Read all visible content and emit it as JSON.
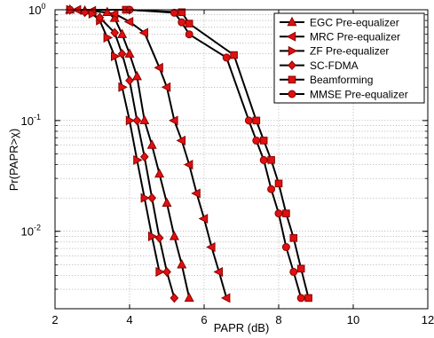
{
  "chart_data": {
    "type": "line",
    "xlabel": "PAPR (dB)",
    "ylabel": "Pr(PAPR>χ)",
    "xlim": [
      2,
      12
    ],
    "ylim": [
      0.002,
      1
    ],
    "yscale": "log",
    "x_ticks": [
      "2",
      "4",
      "6",
      "8",
      "10",
      "12"
    ],
    "y_ticks": [
      {
        "base": "10",
        "exp": "0"
      },
      {
        "base": "10",
        "exp": "-1"
      },
      {
        "base": "10",
        "exp": "-2"
      }
    ],
    "grid": true,
    "legend_position": "top-right",
    "series": [
      {
        "name": "EGC Pre-equalizer",
        "marker": "triangle-up",
        "color": "#e01010",
        "x": [
          2.4,
          2.8,
          3.4,
          3.6,
          3.8,
          4.0,
          4.2,
          4.4,
          4.6,
          4.8,
          5.0,
          5.2,
          5.4,
          5.6
        ],
        "y": [
          1.0,
          0.98,
          0.95,
          0.84,
          0.6,
          0.4,
          0.25,
          0.1,
          0.06,
          0.033,
          0.018,
          0.009,
          0.005,
          0.0025
        ]
      },
      {
        "name": "MRC Pre-equalizer",
        "marker": "triangle-left",
        "color": "#e01010",
        "x": [
          2.6,
          3.0,
          3.6,
          4.0,
          4.4,
          4.8,
          5.0,
          5.2,
          5.4,
          5.6,
          5.8,
          6.0,
          6.2,
          6.4,
          6.6
        ],
        "y": [
          1.0,
          0.98,
          0.92,
          0.78,
          0.62,
          0.3,
          0.2,
          0.1,
          0.066,
          0.04,
          0.022,
          0.013,
          0.0072,
          0.0043,
          0.0025
        ]
      },
      {
        "name": "ZF Pre-equalizer",
        "marker": "triangle-right",
        "color": "#e01010",
        "x": [
          2.4,
          3.0,
          3.2,
          3.4,
          3.6,
          3.8,
          4.0,
          4.2,
          4.4,
          4.6,
          4.8
        ],
        "y": [
          1.0,
          0.92,
          0.8,
          0.56,
          0.38,
          0.2,
          0.1,
          0.044,
          0.02,
          0.009,
          0.0043
        ]
      },
      {
        "name": "SC-FDMA",
        "marker": "diamond",
        "color": "#e01010",
        "x": [
          2.4,
          2.8,
          3.2,
          3.6,
          3.8,
          4.0,
          4.2,
          4.4,
          4.6,
          4.8,
          5.0,
          5.2
        ],
        "y": [
          1.0,
          0.95,
          0.85,
          0.62,
          0.4,
          0.23,
          0.1,
          0.047,
          0.02,
          0.0087,
          0.0043,
          0.0025
        ]
      },
      {
        "name": "Beamforming",
        "marker": "square",
        "color": "#e01010",
        "x": [
          3.9,
          5.4,
          5.6,
          6.8,
          7.4,
          7.6,
          7.8,
          8.0,
          8.2,
          8.4,
          8.6,
          8.8
        ],
        "y": [
          1.0,
          0.95,
          0.75,
          0.39,
          0.1,
          0.066,
          0.044,
          0.027,
          0.0145,
          0.0087,
          0.0046,
          0.0025
        ]
      },
      {
        "name": "MMSE Pre-equalizer",
        "marker": "circle",
        "color": "#e01010",
        "x": [
          2.4,
          4.0,
          5.2,
          5.4,
          5.6,
          6.6,
          7.2,
          7.4,
          7.6,
          7.8,
          8.0,
          8.2,
          8.4,
          8.6
        ],
        "y": [
          1.0,
          1.0,
          0.94,
          0.77,
          0.6,
          0.37,
          0.1,
          0.066,
          0.044,
          0.024,
          0.0145,
          0.0072,
          0.0043,
          0.0025
        ]
      }
    ]
  }
}
